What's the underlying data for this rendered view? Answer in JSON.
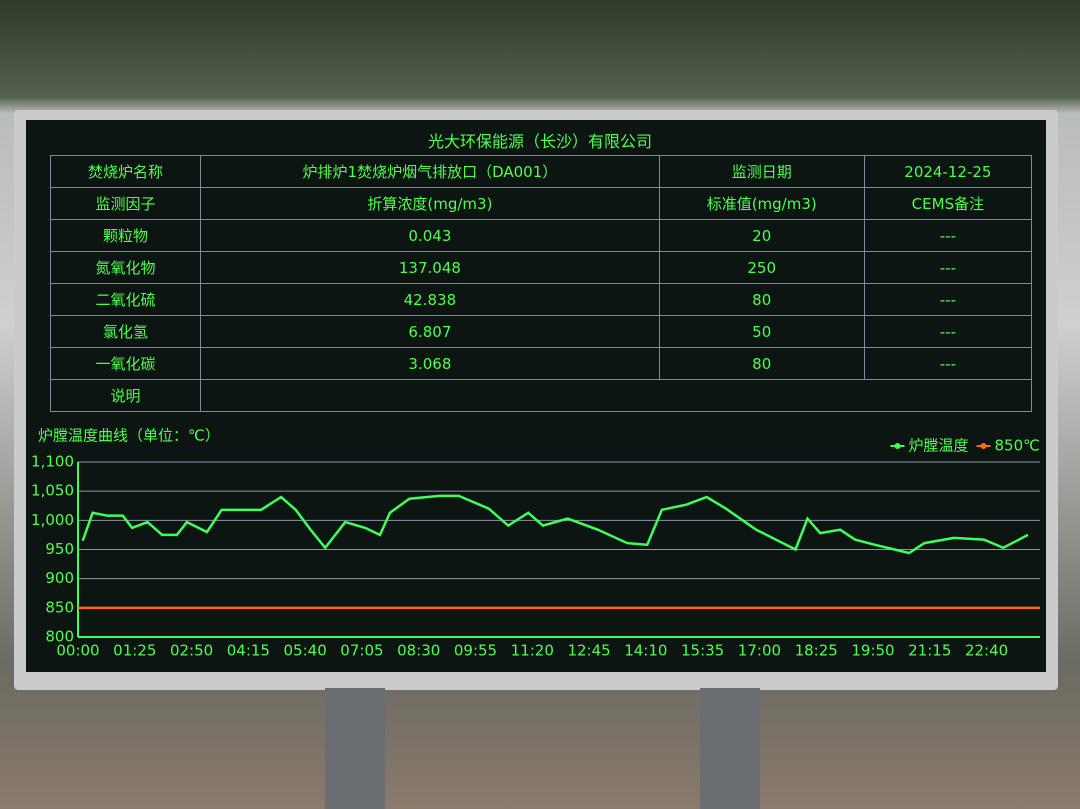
{
  "title": "光大环保能源（长沙）有限公司",
  "table": {
    "rows": [
      [
        "焚烧炉名称",
        "炉排炉1焚烧炉烟气排放口（DA001）",
        "监测日期",
        "2024-12-25"
      ],
      [
        "监测因子",
        "折算浓度(mg/m3)",
        "标准值(mg/m3)",
        "CEMS备注"
      ],
      [
        "颗粒物",
        "0.043",
        "20",
        "---"
      ],
      [
        "氮氧化物",
        "137.048",
        "250",
        "---"
      ],
      [
        "二氧化硫",
        "42.838",
        "80",
        "---"
      ],
      [
        "氯化氢",
        "6.807",
        "50",
        "---"
      ],
      [
        "一氧化碳",
        "3.068",
        "80",
        "---"
      ],
      [
        "说明"
      ]
    ]
  },
  "chart_data": {
    "type": "line",
    "title": "炉膛温度曲线（单位：℃）",
    "xlim": [
      0,
      1440
    ],
    "xticks": [
      {
        "value": 0,
        "label": "00:00"
      },
      {
        "value": 85,
        "label": "01:25"
      },
      {
        "value": 170,
        "label": "02:50"
      },
      {
        "value": 255,
        "label": "04:15"
      },
      {
        "value": 340,
        "label": "05:40"
      },
      {
        "value": 425,
        "label": "07:05"
      },
      {
        "value": 510,
        "label": "08:30"
      },
      {
        "value": 595,
        "label": "09:55"
      },
      {
        "value": 680,
        "label": "11:20"
      },
      {
        "value": 765,
        "label": "12:45"
      },
      {
        "value": 850,
        "label": "14:10"
      },
      {
        "value": 935,
        "label": "15:35"
      },
      {
        "value": 1020,
        "label": "17:00"
      },
      {
        "value": 1105,
        "label": "18:25"
      },
      {
        "value": 1190,
        "label": "19:50"
      },
      {
        "value": 1275,
        "label": "21:15"
      },
      {
        "value": 1360,
        "label": "22:40"
      }
    ],
    "ylim": [
      800,
      1100
    ],
    "yticks": [
      800,
      850,
      900,
      950,
      {
        "value": 1000,
        "label": "1,000"
      },
      {
        "value": 1050,
        "label": "1,050"
      },
      {
        "value": 1100,
        "label": "1,100"
      }
    ],
    "grid": true,
    "legend": "top-right",
    "series": [
      {
        "name": "炉膛温度",
        "color": "#3dff5a",
        "x": [
          7,
          22,
          44,
          67,
          81,
          104,
          126,
          148,
          163,
          193,
          215,
          259,
          274,
          304,
          326,
          348,
          370,
          400,
          430,
          452,
          467,
          496,
          541,
          570,
          615,
          644,
          674,
          696,
          733,
          778,
          822,
          852,
          874,
          911,
          941,
          970,
          1015,
          1074,
          1092,
          1111,
          1141,
          1163,
          1193,
          1244,
          1267,
          1311,
          1356,
          1385,
          1422
        ],
        "values": [
          965,
          1013,
          1008,
          1008,
          987,
          997,
          975,
          975,
          997,
          980,
          1018,
          1018,
          1018,
          1040,
          1018,
          984,
          953,
          997,
          987,
          975,
          1013,
          1037,
          1042,
          1042,
          1020,
          991,
          1013,
          991,
          1003,
          984,
          961,
          958,
          1018,
          1027,
          1040,
          1020,
          984,
          950,
          1003,
          978,
          984,
          967,
          958,
          944,
          961,
          970,
          967,
          953,
          975
        ]
      },
      {
        "name": "850℃",
        "color": "#ff6a10",
        "x": [
          0,
          1440
        ],
        "values": [
          850,
          850
        ]
      }
    ]
  }
}
